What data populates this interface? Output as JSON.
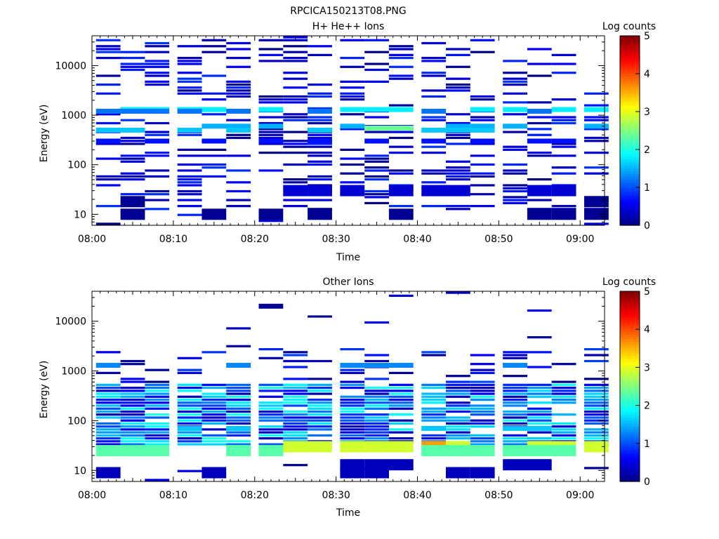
{
  "figure_title": "RPCICA150213T08.PNG",
  "chart_data": [
    {
      "type": "heatmap",
      "title": "H+ He++ Ions",
      "xlabel": "Time",
      "ylabel": "Energy (eV)",
      "colorbar_label": "Log counts",
      "x_range": [
        "08:00",
        "09:03"
      ],
      "x_ticks": [
        "08:00",
        "08:10",
        "08:20",
        "08:30",
        "08:40",
        "08:50",
        "09:00"
      ],
      "y_scale": "log",
      "y_range": [
        6,
        40000
      ],
      "y_ticks": [
        "10",
        "100",
        "1000",
        "10000"
      ],
      "color_range": [
        0,
        5
      ],
      "colorbar_ticks": [
        "0",
        "1",
        "2",
        "3",
        "4",
        "5"
      ],
      "colormap": [
        "#00007f",
        "#0000ff",
        "#007fff",
        "#00ffff",
        "#7fff7f",
        "#ffff00",
        "#ff7f00",
        "#ff0000",
        "#7f0000"
      ],
      "time_bins": [
        "08:02",
        "08:05",
        "08:08",
        "08:12",
        "08:15",
        "08:18",
        "08:22",
        "08:25",
        "08:28",
        "08:32",
        "08:35",
        "08:38",
        "08:42",
        "08:45",
        "08:48",
        "08:52",
        "08:55",
        "08:58",
        "09:02"
      ],
      "features": [
        {
          "energy": 1300,
          "level": 1.8,
          "bins": [
            1,
            2,
            3,
            4,
            6,
            9,
            10,
            11,
            14,
            15,
            17,
            18
          ]
        },
        {
          "energy": 1200,
          "level": 1.2,
          "bins": [
            0,
            1,
            2,
            3,
            5,
            8,
            12,
            16
          ]
        },
        {
          "energy": 600,
          "level": 1.5,
          "bins": [
            4,
            5,
            6,
            9,
            13,
            14,
            15,
            18
          ]
        },
        {
          "energy": 550,
          "level": 2.4,
          "bins": [
            10,
            11
          ]
        },
        {
          "energy": 500,
          "level": 1.6,
          "bins": [
            0,
            1,
            3,
            5,
            8,
            12,
            13,
            14
          ]
        },
        {
          "energy": 300,
          "level": 0.7,
          "bins": [
            0,
            2,
            4,
            6,
            8,
            10,
            12,
            14,
            16,
            17
          ]
        },
        {
          "energy": 30,
          "level": 0.4,
          "bins": [
            7,
            8,
            9,
            11,
            12,
            13,
            16,
            17
          ]
        },
        {
          "energy": 10,
          "level": 0.1,
          "bins": [
            1,
            4,
            6,
            8,
            11,
            16,
            17,
            18
          ]
        },
        {
          "energy": 18,
          "level": 0.1,
          "bins": [
            1,
            18
          ]
        }
      ],
      "background": "sparse low-count stripes (levels 0-1) at 10-40000 eV"
    },
    {
      "type": "heatmap",
      "title": "Other Ions",
      "xlabel": "Time",
      "ylabel": "Energy (eV)",
      "colorbar_label": "Log counts",
      "x_range": [
        "08:00",
        "09:03"
      ],
      "x_ticks": [
        "08:00",
        "08:10",
        "08:20",
        "08:30",
        "08:40",
        "08:50",
        "09:00"
      ],
      "y_scale": "log",
      "y_range": [
        6,
        40000
      ],
      "y_ticks": [
        "10",
        "100",
        "1000",
        "10000"
      ],
      "color_range": [
        0,
        5
      ],
      "colorbar_ticks": [
        "0",
        "1",
        "2",
        "3",
        "4",
        "5"
      ],
      "colormap": [
        "#00007f",
        "#0000ff",
        "#007fff",
        "#00ffff",
        "#7fff7f",
        "#ffff00",
        "#ff7f00",
        "#ff0000",
        "#7f0000"
      ],
      "time_bins": [
        "08:02",
        "08:05",
        "08:08",
        "08:12",
        "08:15",
        "08:18",
        "08:22",
        "08:25",
        "08:28",
        "08:32",
        "08:35",
        "08:38",
        "08:42",
        "08:45",
        "08:48",
        "08:52",
        "08:55",
        "08:58",
        "09:02"
      ],
      "features": [
        {
          "energy": 30,
          "level": 2.9,
          "bins": [
            7,
            8,
            9,
            10,
            11,
            13,
            16,
            17,
            18
          ]
        },
        {
          "energy": 30,
          "level": 3.6,
          "bins": [
            12
          ]
        },
        {
          "energy": 25,
          "level": 2.3,
          "bins": [
            0,
            1,
            2,
            5,
            6,
            12,
            13,
            14,
            15,
            16,
            17
          ]
        },
        {
          "energy": 70,
          "level": 1.6,
          "bins": [
            3,
            5,
            12,
            15,
            16
          ]
        },
        {
          "energy": 13,
          "level": 0.3,
          "bins": [
            9,
            10,
            11,
            15,
            16
          ]
        },
        {
          "energy": 9,
          "level": 0.3,
          "bins": [
            0,
            4,
            9,
            10,
            13,
            14
          ]
        },
        {
          "energy": 1300,
          "level": 1.3,
          "bins": [
            0,
            5,
            9,
            10,
            11,
            15
          ]
        },
        {
          "energy": 20000,
          "level": 0.1,
          "bins": [
            6
          ]
        }
      ],
      "background": "dense counts (levels 0-2) at 30-600 eV, sparse stripes up to 3000 eV"
    }
  ]
}
